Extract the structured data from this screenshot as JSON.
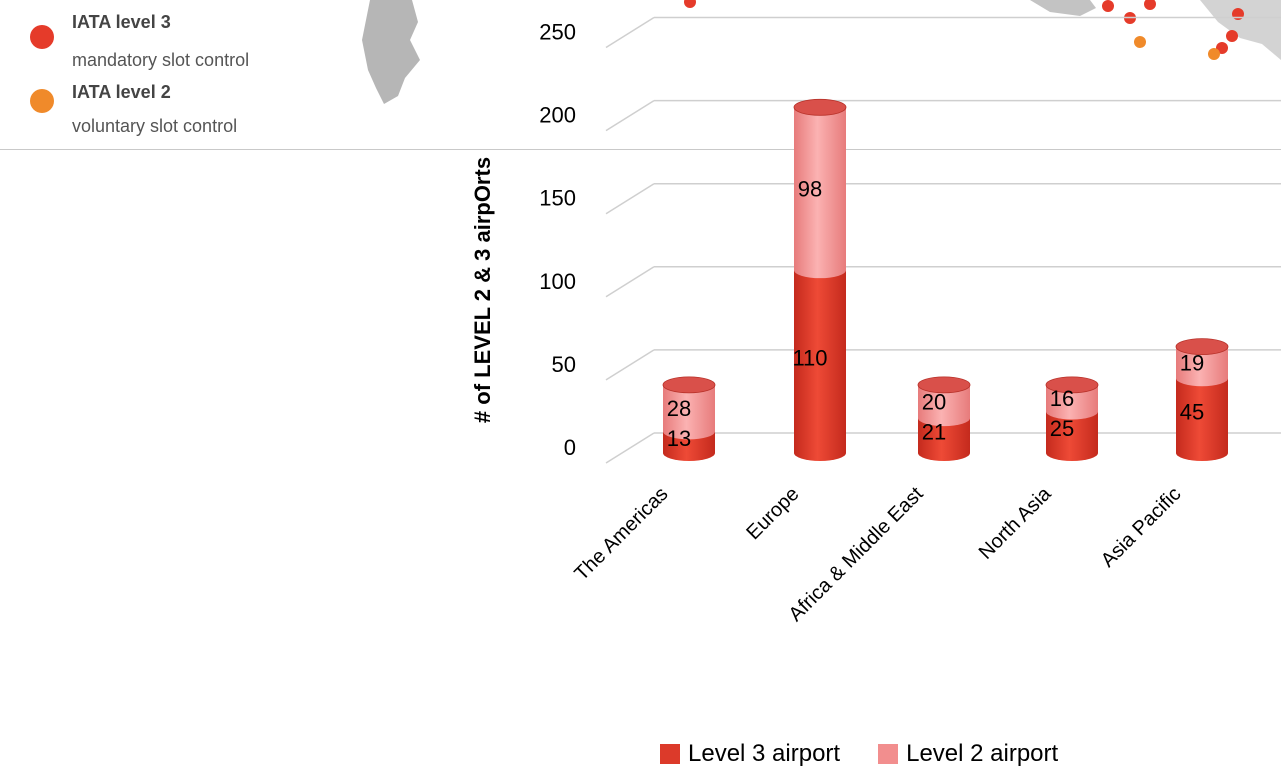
{
  "map_legend": {
    "items": [
      {
        "title": "IATA level 3",
        "subtitle": "mandatory slot control",
        "color": "#e53b2a"
      },
      {
        "title": "IATA level 2",
        "subtitle": "voluntary slot control",
        "color": "#f08a2a"
      }
    ]
  },
  "chart_data": {
    "type": "bar",
    "title": "",
    "xlabel": "",
    "ylabel": "# of  LEVEL 2 & 3 airpOrts",
    "ylim": [
      0,
      250
    ],
    "yticks": [
      "0",
      "50",
      "100",
      "150",
      "200",
      "250"
    ],
    "grid": true,
    "stacked": true,
    "legend_position": "bottom",
    "categories": [
      "The Americas",
      "Europe",
      "Africa & Middle East",
      "North Asia",
      "Asia Pacific"
    ],
    "series": [
      {
        "name": "Level 3 airport",
        "values": [
          13,
          110,
          21,
          25,
          45
        ],
        "color": "#dc3a2a"
      },
      {
        "name": "Level 2 airport",
        "values": [
          28,
          98,
          20,
          16,
          19
        ],
        "color": "#f28e8e"
      }
    ]
  }
}
